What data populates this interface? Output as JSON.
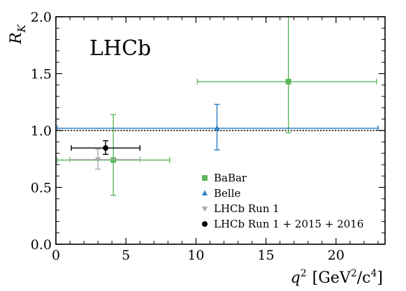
{
  "chart_data": {
    "type": "scatter",
    "title": "",
    "watermark": "LHCb",
    "ylabel": "R",
    "ylabel_sub": "K",
    "xlabel": "q",
    "xlabel_sup": "2",
    "xlabel_units_prefix": "[GeV",
    "xlabel_units_sup1": "2",
    "xlabel_units_mid": "/c",
    "xlabel_units_sup2": "4",
    "xlabel_units_suffix": "]",
    "xlim": [
      0,
      23.5
    ],
    "ylim": [
      0,
      2.0
    ],
    "xticks": [
      0,
      5,
      10,
      15,
      20
    ],
    "xtick_labels": [
      "0",
      "5",
      "10",
      "15",
      "20"
    ],
    "yticks": [
      0.0,
      0.5,
      1.0,
      1.5,
      2.0
    ],
    "ytick_labels": [
      "0.0",
      "0.5",
      "1.0",
      "1.5",
      "2.0"
    ],
    "reference_line": {
      "y": 1.0,
      "style": "dotted",
      "color": "#000000"
    },
    "legend_position": "center-right",
    "series": [
      {
        "name": "BaBar",
        "marker": "square",
        "color": "#5cb85c",
        "points": [
          {
            "x": 4.1,
            "xerr": [
              0.1,
              8.12
            ],
            "y": 0.74,
            "yerr": [
              0.43,
              1.14
            ]
          },
          {
            "x": 16.6,
            "xerr": [
              10.1,
              22.9
            ],
            "y": 1.43,
            "yerr": [
              0.98,
              2.0
            ]
          }
        ]
      },
      {
        "name": "Belle",
        "marker": "triangle-up",
        "color": "#2f7fc1",
        "points": [
          {
            "x": 11.5,
            "xerr": [
              0.1,
              23.0
            ],
            "y": 1.02,
            "yerr": [
              0.83,
              1.23
            ]
          }
        ]
      },
      {
        "name": "LHCb Run 1",
        "marker": "triangle-down",
        "color": "#aaaaaa",
        "points": [
          {
            "x": 3.0,
            "xerr": [
              1.0,
              6.0
            ],
            "y": 0.745,
            "yerr": [
              0.66,
              0.835
            ]
          }
        ]
      },
      {
        "name": "LHCb Run 1 + 2015 + 2016",
        "marker": "circle",
        "color": "#000000",
        "points": [
          {
            "x": 3.55,
            "xerr": [
              1.1,
              6.0
            ],
            "y": 0.846,
            "yerr": [
              0.79,
              0.91
            ]
          }
        ]
      }
    ]
  }
}
